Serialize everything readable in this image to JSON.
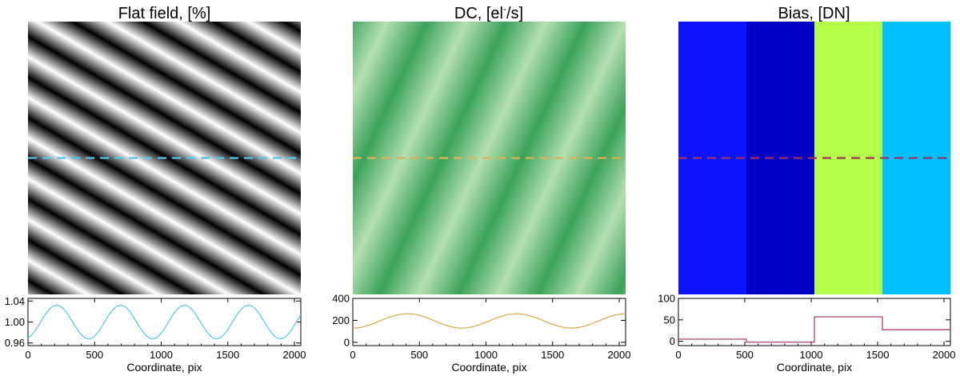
{
  "chart_data": [
    {
      "type": "heatmap",
      "title_main": "Flat field, [%]",
      "pattern": "diagonal-sinusoid",
      "colormap": "grayscale",
      "colors": {
        "low": "#000000",
        "high": "#ffffff",
        "cut_line": "#4cc8f0"
      },
      "cut_row_fraction": 0.5,
      "profile": {
        "type": "line",
        "xlabel": "Coordinate, pix",
        "xlim": [
          0,
          2048
        ],
        "xticks": [
          "0",
          "500",
          "1000",
          "1500",
          "2000"
        ],
        "ylim": [
          0.955,
          1.045
        ],
        "yticks": [
          "0.96",
          "1.00",
          "1.04"
        ],
        "ytick_values": [
          0.96,
          1.0,
          1.04
        ],
        "line_color": "#4cc8f0",
        "waveform": "sine",
        "mean": 1.0,
        "amplitude": 0.032,
        "period_pix": 480,
        "first_peak_pix": 215
      }
    },
    {
      "type": "heatmap",
      "title_main": "DC, [el",
      "title_sup": "-",
      "title_tail": "/s]",
      "pattern": "diagonal-sinusoid",
      "colormap": "green",
      "colors": {
        "low": "#3aa35a",
        "high": "#b5e0b1",
        "cut_line": "#e0b24a"
      },
      "cut_row_fraction": 0.5,
      "profile": {
        "type": "line",
        "xlabel": "Coordinate, pix",
        "xlim": [
          0,
          2048
        ],
        "xticks": [
          "0",
          "500",
          "1000",
          "1500",
          "2000"
        ],
        "ylim": [
          -30,
          400
        ],
        "yticks": [
          "0",
          "200",
          "400"
        ],
        "ytick_values": [
          0,
          200,
          400
        ],
        "line_color": "#d9a84a",
        "waveform": "sine",
        "mean": 195,
        "amplitude": 65,
        "period_pix": 820,
        "first_peak_pix": 410
      }
    },
    {
      "type": "heatmap",
      "title_main": "Bias, [DN]",
      "pattern": "vertical-blocks",
      "colors": {
        "cut_line": "#a0305e"
      },
      "blocks": [
        {
          "x0": 0,
          "x1": 512,
          "value": 5,
          "color": "#0a14ff"
        },
        {
          "x0": 512,
          "x1": 1024,
          "value": -2,
          "color": "#0000c8"
        },
        {
          "x0": 1024,
          "x1": 1536,
          "value": 57,
          "color": "#b4ff4a"
        },
        {
          "x0": 1536,
          "x1": 2048,
          "value": 27,
          "color": "#00c0ff"
        }
      ],
      "cut_row_fraction": 0.5,
      "profile": {
        "type": "line",
        "xlabel": "Coordinate, pix",
        "xlim": [
          0,
          2048
        ],
        "xticks": [
          "0",
          "500",
          "1000",
          "1500",
          "2000"
        ],
        "ylim": [
          -10,
          100
        ],
        "yticks": [
          "0",
          "50",
          "100"
        ],
        "ytick_values": [
          0,
          50,
          100
        ],
        "line_color": "#a0305e",
        "waveform": "step"
      }
    }
  ]
}
